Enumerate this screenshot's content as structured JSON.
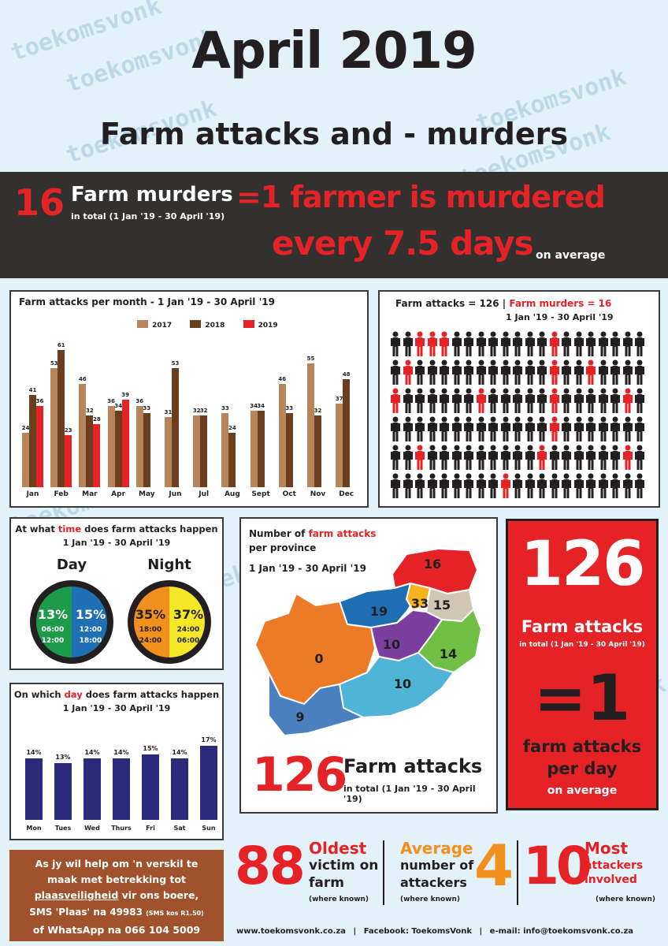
{
  "watermark": "toekomsvonk",
  "title": "April 2019",
  "subtitle": "Farm attacks and - murders",
  "banner": {
    "number": "16",
    "label": "Farm murders",
    "sub": "in total (1 Jan '19 - 30 April '19)",
    "line1": "=1 farmer is murdered",
    "line2": "every 7.5 days",
    "avg": "on average"
  },
  "colors": {
    "c2017": "#b8845a",
    "c2018": "#6b3e1e",
    "c2019": "#e52226",
    "navy": "#2b2a7c",
    "dark": "#333130",
    "red": "#e52226"
  },
  "chart_data": [
    {
      "type": "bar",
      "title": "Farm attacks per month  - 1 Jan '19 - 30 April '19",
      "categories": [
        "Jan",
        "Feb",
        "Mar",
        "Apr",
        "May",
        "Jun",
        "Jul",
        "Aug",
        "Sept",
        "Oct",
        "Nov",
        "Dec"
      ],
      "series": [
        {
          "name": "2017",
          "values": [
            24,
            53,
            46,
            36,
            36,
            31,
            32,
            33,
            34,
            46,
            55,
            37
          ]
        },
        {
          "name": "2018",
          "values": [
            41,
            61,
            32,
            34,
            33,
            53,
            32,
            24,
            34,
            33,
            32,
            48
          ]
        },
        {
          "name": "2019",
          "values": [
            36,
            23,
            28,
            39,
            null,
            null,
            null,
            null,
            null,
            null,
            null,
            null
          ]
        }
      ],
      "labels": [
        [
          "24",
          "41",
          "36"
        ],
        [
          "53",
          "61",
          "23"
        ],
        [
          "46",
          "32",
          "28"
        ],
        [
          "36",
          "34",
          "39"
        ],
        [
          "36",
          "33",
          ""
        ],
        [
          "31",
          "53",
          ""
        ],
        [
          "32",
          "32",
          ""
        ],
        [
          "33",
          "24",
          ""
        ],
        [
          "34",
          "34",
          ""
        ],
        [
          "46",
          "33",
          ""
        ],
        [
          "55",
          "32",
          ""
        ],
        [
          "37",
          "48",
          ""
        ]
      ],
      "ylim": [
        0,
        70
      ]
    },
    {
      "type": "bar",
      "title": "On which day does farm attacks happen",
      "subtitle": "1 Jan '19 - 30 April '19",
      "categories": [
        "Mon",
        "Tues",
        "Wed",
        "Thurs",
        "Fri",
        "Sat",
        "Sun"
      ],
      "values": [
        14,
        13,
        14,
        14,
        15,
        14,
        17
      ],
      "labels": [
        "14%",
        "13%",
        "14%",
        "14%",
        "15%",
        "14%",
        "17%"
      ],
      "ylim": [
        0,
        18
      ]
    }
  ],
  "pictogram": {
    "title_a": "Farm attacks = 126",
    "sep": "|",
    "title_b": "Farm murders = 16",
    "date": "1 Jan '19 - 30 April '19",
    "total": 126,
    "red": 16
  },
  "time": {
    "title_a": "At what ",
    "title_em": "time",
    "title_b": " does farm attacks happen",
    "date": "1 Jan '19 - 30 April '19",
    "day": {
      "label": "Day",
      "left": {
        "pct": "13%",
        "t1": "06:00",
        "t2": "12:00",
        "color": "#1e9a4b"
      },
      "right": {
        "pct": "15%",
        "t1": "12:00",
        "t2": "18:00",
        "color": "#1f6fb4"
      }
    },
    "night": {
      "label": "Night",
      "left": {
        "pct": "35%",
        "t1": "18:00",
        "t2": "24:00",
        "color": "#f2901d"
      },
      "right": {
        "pct": "37%",
        "t1": "24:00",
        "t2": "06:00",
        "color": "#f5e826"
      }
    }
  },
  "day_title": {
    "a": "On which ",
    "em": "day",
    "b": " does farm attacks happen",
    "date": "1 Jan '19 - 30 April '19"
  },
  "map": {
    "title_a": "Number of ",
    "title_em": "farm attacks",
    "title_b": "per province",
    "date": "1 Jan '19 - 30 April '19",
    "values": [
      "16",
      "19",
      "33",
      "15",
      "0",
      "10",
      "14",
      "10",
      "9"
    ],
    "big": "126",
    "big_label": "Farm attacks",
    "big_sub": "in total (1 Jan '19 - 30 April '19)"
  },
  "redbox": {
    "num": "126",
    "label": "Farm attacks",
    "sub": "in total (1 Jan '19 - 30 April '19)",
    "eq": "=1",
    "per1": "farm attacks",
    "per2": "per day",
    "avg": "on average"
  },
  "help": {
    "l1": "As jy wil help om 'n verskil te",
    "l2": "maak met betrekking tot",
    "l3a": "plaasveiligheid",
    "l3b": " vir ons boere,",
    "l4a": "SMS 'Plaas' na 49983 ",
    "l4b": "(SMS kos R1.50)",
    "l5": "of  WhatsApp na 066 104 5009"
  },
  "stats": [
    {
      "num": "88",
      "l1": "Oldest",
      "l2": "victim on",
      "l3": "farm",
      "note": "(where known)"
    },
    {
      "num": "4",
      "l1": "Average",
      "l2": "number of",
      "l3": "attackers",
      "note": "(where known)"
    },
    {
      "num": "10",
      "l1": "Most",
      "l2": "attackers",
      "l3": "involved",
      "note": "(where known)"
    }
  ],
  "footer": {
    "web": "www.toekomsvonk.co.za",
    "sep": "|",
    "fb": "Facebook: ToekomsVonk",
    "email": "e-mail: info@toekomsvonk.co.za"
  }
}
